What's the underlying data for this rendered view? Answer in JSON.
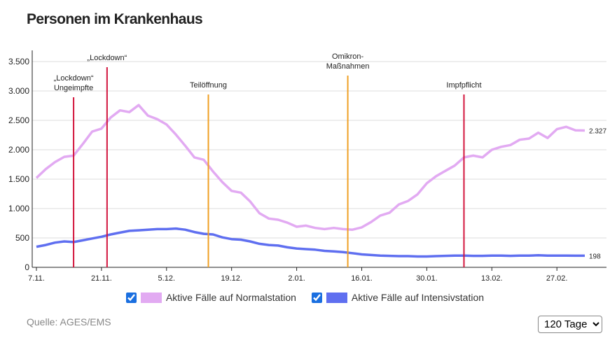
{
  "chart_data": {
    "type": "line",
    "title": "Personen im Krankenhaus",
    "source": "Quelle: AGES/EMS",
    "range_select": "120 Tage",
    "categories": [
      "7.11.",
      null,
      null,
      null,
      null,
      null,
      null,
      "21.11.",
      null,
      null,
      null,
      null,
      null,
      null,
      "5.12.",
      null,
      null,
      null,
      null,
      null,
      null,
      "19.12.",
      null,
      null,
      null,
      null,
      null,
      null,
      "2.01.",
      null,
      null,
      null,
      null,
      null,
      null,
      "16.01.",
      null,
      null,
      null,
      null,
      null,
      null,
      "30.01.",
      null,
      null,
      null,
      null,
      null,
      null,
      "13.02.",
      null,
      null,
      null,
      null,
      null,
      null,
      "27.02.",
      null,
      null,
      null
    ],
    "ylim": [
      0,
      3500
    ],
    "yticks": [
      0,
      500,
      {
        "value": 1000,
        "label": "1.000"
      },
      {
        "value": 1500,
        "label": "1.500"
      },
      {
        "value": 2000,
        "label": "2.000"
      },
      {
        "value": 2500,
        "label": "2.500"
      },
      {
        "value": 3000,
        "label": "3.000"
      },
      {
        "value": 3500,
        "label": "3.500"
      }
    ],
    "grid": true,
    "series": [
      {
        "name": "Aktive Fälle auf Normalstation",
        "color": "#e2aaf2",
        "values": [
          1520,
          1670,
          1790,
          1880,
          1900,
          2100,
          2310,
          2360,
          2550,
          2670,
          2640,
          2760,
          2580,
          2520,
          2430,
          2260,
          2070,
          1870,
          1830,
          1630,
          1450,
          1300,
          1270,
          1120,
          920,
          830,
          810,
          760,
          690,
          710,
          670,
          650,
          670,
          650,
          640,
          680,
          770,
          880,
          930,
          1070,
          1130,
          1240,
          1430,
          1550,
          1640,
          1730,
          1870,
          1900,
          1870,
          2000,
          2050,
          2080,
          2170,
          2190,
          2290,
          2200,
          2350,
          2390,
          2330,
          2327
        ],
        "value_labels": [
          null,
          null,
          null,
          null,
          null,
          null,
          null,
          null,
          null,
          null,
          null,
          null,
          null,
          null,
          null,
          null,
          null,
          null,
          null,
          null,
          null,
          null,
          null,
          null,
          null,
          null,
          null,
          null,
          null,
          null,
          null,
          null,
          null,
          null,
          null,
          null,
          null,
          null,
          null,
          null,
          null,
          null,
          null,
          null,
          null,
          null,
          null,
          null,
          null,
          null,
          null,
          null,
          null,
          null,
          null,
          null,
          null,
          null,
          null,
          "2.327"
        ]
      },
      {
        "name": "Aktive Fälle auf Intensivstation",
        "color": "#5f6ff0",
        "values": [
          350,
          380,
          420,
          440,
          430,
          460,
          490,
          520,
          560,
          590,
          620,
          630,
          640,
          650,
          650,
          660,
          640,
          600,
          570,
          560,
          510,
          480,
          470,
          440,
          400,
          380,
          370,
          340,
          320,
          310,
          300,
          280,
          270,
          260,
          240,
          220,
          210,
          200,
          195,
          190,
          190,
          185,
          185,
          190,
          195,
          200,
          200,
          195,
          195,
          200,
          200,
          195,
          200,
          200,
          205,
          200,
          200,
          200,
          198,
          198
        ],
        "value_labels": [
          null,
          null,
          null,
          null,
          null,
          null,
          null,
          null,
          null,
          null,
          null,
          null,
          null,
          null,
          null,
          null,
          null,
          null,
          null,
          null,
          null,
          null,
          null,
          null,
          null,
          null,
          null,
          null,
          null,
          null,
          null,
          null,
          null,
          null,
          null,
          null,
          null,
          null,
          null,
          null,
          null,
          null,
          null,
          null,
          null,
          null,
          null,
          null,
          null,
          null,
          null,
          null,
          null,
          null,
          null,
          null,
          null,
          null,
          null,
          "198"
        ]
      }
    ],
    "events": [
      {
        "x": 4,
        "label": [
          "„Lockdown“",
          "Ungeimpfte"
        ],
        "color": "#d2143c"
      },
      {
        "x": 7.6,
        "label": [
          "„Lockdown“"
        ],
        "color": "#d2143c"
      },
      {
        "x": 18.5,
        "label": [
          "Teilöffnung"
        ],
        "color": "#f0a024"
      },
      {
        "x": 33.5,
        "label": [
          "Omikron-",
          "Maßnahmen"
        ],
        "color": "#f0a024"
      },
      {
        "x": 46,
        "label": [
          "Impfpflicht"
        ],
        "color": "#d2143c"
      }
    ]
  }
}
